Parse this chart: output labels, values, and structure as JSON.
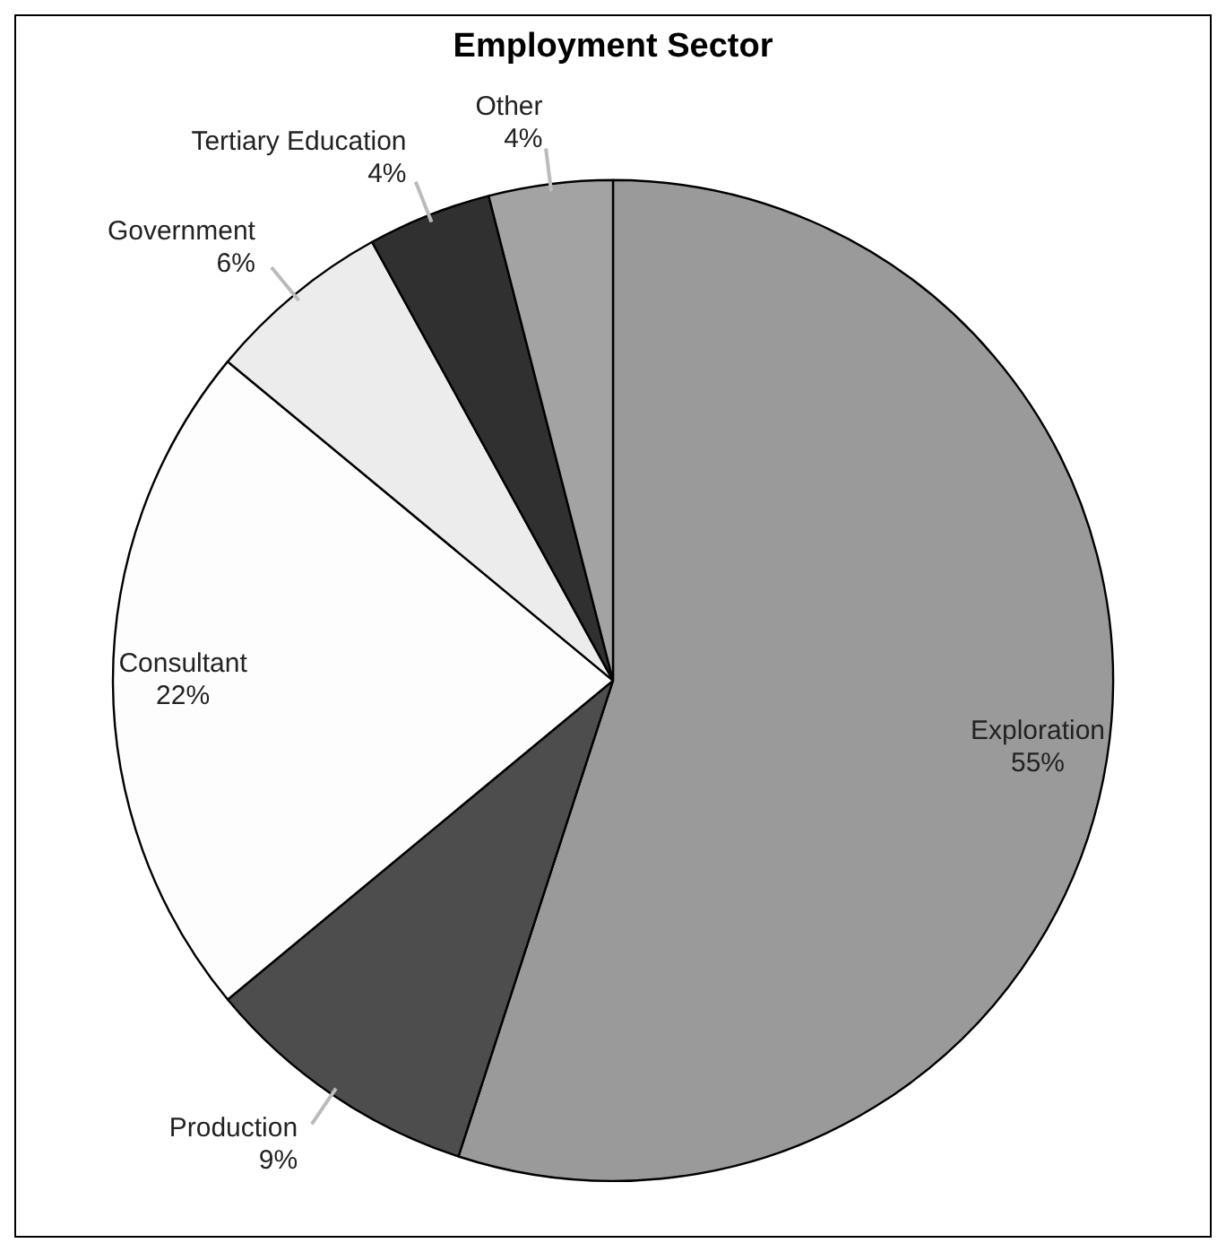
{
  "chart_data": {
    "type": "pie",
    "title": "Employment Sector",
    "categories": [
      "Exploration",
      "Production",
      "Consultant",
      "Government",
      "Tertiary Education",
      "Other"
    ],
    "values": [
      55,
      9,
      22,
      6,
      4,
      4
    ],
    "value_labels": [
      "55%",
      "9%",
      "22%",
      "6%",
      "4%",
      "4%"
    ],
    "colors": [
      "#9a9a9a",
      "#4d4d4d",
      "#fdfdfd",
      "#ececec",
      "#303030",
      "#a3a3a3"
    ],
    "legend": false
  }
}
